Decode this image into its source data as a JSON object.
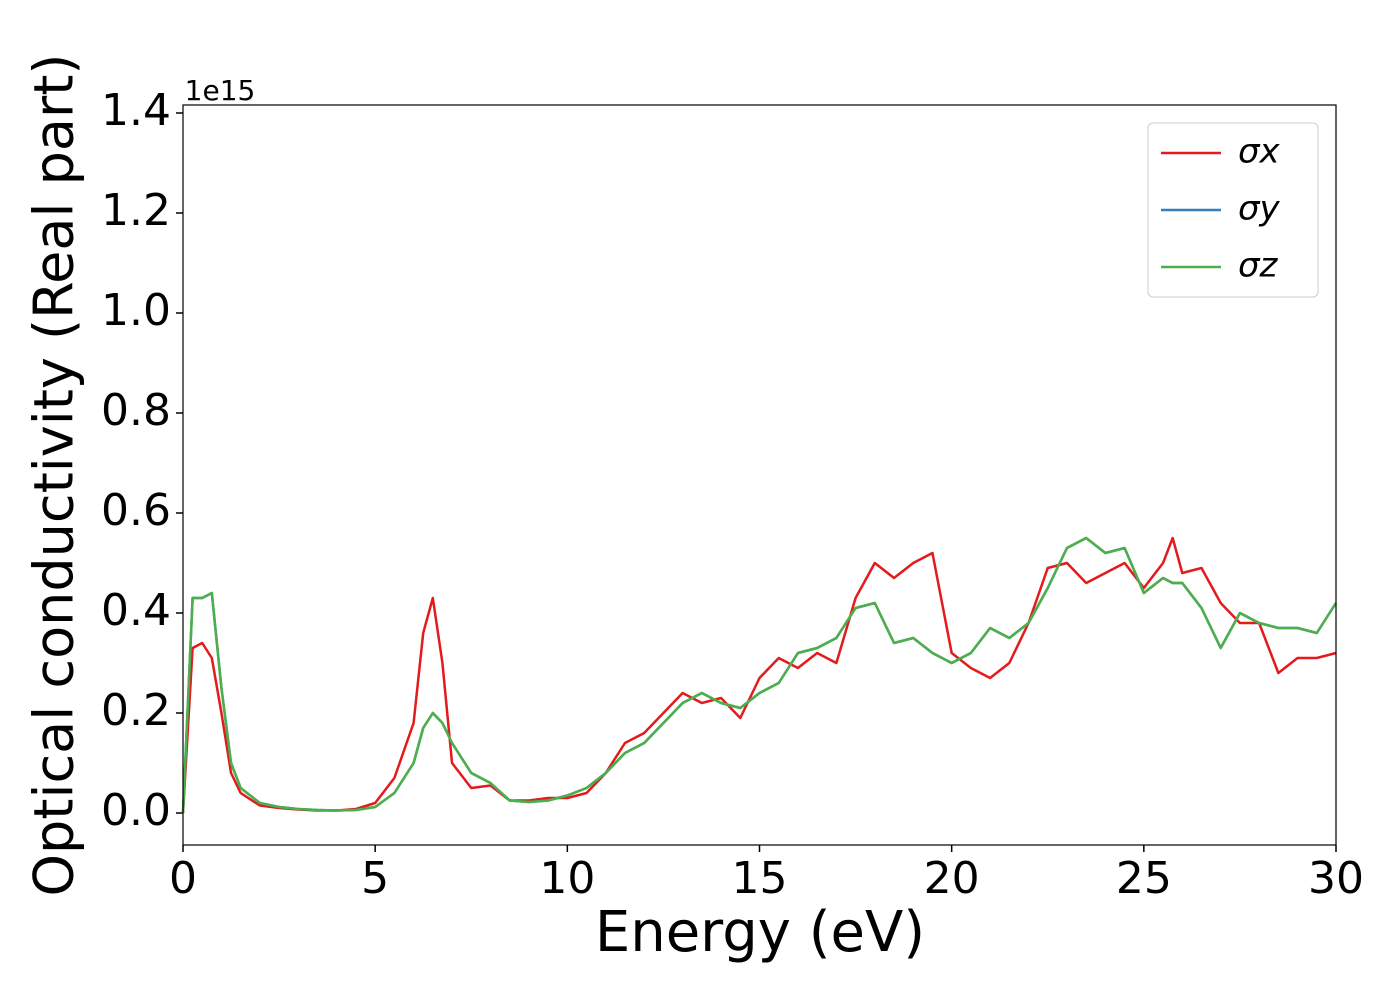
{
  "chart_data": {
    "type": "line",
    "xlabel": "Energy (eV)",
    "ylabel": "Optical conductivity (Real part)",
    "offset_text": "1e15",
    "x": [
      0,
      0.25,
      0.5,
      0.75,
      1,
      1.25,
      1.5,
      2,
      2.5,
      3,
      3.5,
      4,
      4.5,
      5,
      5.5,
      6,
      6.25,
      6.5,
      6.75,
      7,
      7.5,
      8,
      8.5,
      9,
      9.5,
      10,
      10.5,
      11,
      11.5,
      12,
      12.5,
      13,
      13.5,
      14,
      14.5,
      15,
      15.5,
      16,
      16.5,
      17,
      17.5,
      18,
      18.5,
      19,
      19.5,
      20,
      20.5,
      21,
      21.5,
      22,
      22.5,
      23,
      23.5,
      24,
      24.5,
      25,
      25.5,
      25.75,
      26,
      26.5,
      27,
      27.5,
      28,
      28.5,
      29,
      29.5,
      30
    ],
    "series": [
      {
        "name": "σx",
        "color": "#e41a1c",
        "values": [
          0,
          0.33,
          0.34,
          0.31,
          0.2,
          0.08,
          0.04,
          0.015,
          0.01,
          0.007,
          0.005,
          0.005,
          0.008,
          0.02,
          0.07,
          0.18,
          0.36,
          0.43,
          0.3,
          0.1,
          0.05,
          0.055,
          0.025,
          0.025,
          0.03,
          0.03,
          0.04,
          0.08,
          0.14,
          0.16,
          0.2,
          0.24,
          0.22,
          0.23,
          0.19,
          0.27,
          0.31,
          0.29,
          0.32,
          0.3,
          0.43,
          0.5,
          0.47,
          0.5,
          0.52,
          0.32,
          0.29,
          0.27,
          0.3,
          0.38,
          0.49,
          0.5,
          0.46,
          0.48,
          0.5,
          0.45,
          0.5,
          0.55,
          0.48,
          0.49,
          0.42,
          0.38,
          0.38,
          0.28,
          0.31,
          0.31,
          0.32
        ]
      },
      {
        "name": "σy",
        "color": "#377eb8",
        "values": [
          0,
          0.43,
          0.43,
          0.44,
          0.25,
          0.1,
          0.05,
          0.02,
          0.012,
          0.008,
          0.006,
          0.005,
          0.006,
          0.012,
          0.04,
          0.1,
          0.17,
          0.2,
          0.18,
          0.14,
          0.08,
          0.06,
          0.025,
          0.022,
          0.025,
          0.035,
          0.05,
          0.08,
          0.12,
          0.14,
          0.18,
          0.22,
          0.24,
          0.22,
          0.21,
          0.24,
          0.26,
          0.32,
          0.33,
          0.35,
          0.41,
          0.42,
          0.34,
          0.35,
          0.32,
          0.3,
          0.32,
          0.37,
          0.35,
          0.38,
          0.45,
          0.53,
          0.55,
          0.52,
          0.53,
          0.44,
          0.47,
          0.46,
          0.46,
          0.41,
          0.33,
          0.4,
          0.38,
          0.37,
          0.37,
          0.36,
          0.42
        ]
      },
      {
        "name": "σz",
        "color": "#4daf4a",
        "values": [
          0,
          0.43,
          0.43,
          0.44,
          0.25,
          0.1,
          0.05,
          0.02,
          0.012,
          0.008,
          0.006,
          0.005,
          0.006,
          0.012,
          0.04,
          0.1,
          0.17,
          0.2,
          0.18,
          0.14,
          0.08,
          0.06,
          0.025,
          0.022,
          0.025,
          0.035,
          0.05,
          0.08,
          0.12,
          0.14,
          0.18,
          0.22,
          0.24,
          0.22,
          0.21,
          0.24,
          0.26,
          0.32,
          0.33,
          0.35,
          0.41,
          0.42,
          0.34,
          0.35,
          0.32,
          0.3,
          0.32,
          0.37,
          0.35,
          0.38,
          0.45,
          0.53,
          0.55,
          0.52,
          0.53,
          0.44,
          0.47,
          0.46,
          0.46,
          0.41,
          0.33,
          0.4,
          0.38,
          0.37,
          0.37,
          0.36,
          0.42
        ]
      }
    ],
    "xlim": [
      0,
      30
    ],
    "xticks": [
      0,
      5,
      10,
      15,
      20,
      25,
      30
    ],
    "ylim": [
      -0.064,
      1.416
    ],
    "yticks": [
      {
        "value": 0,
        "label": "0.0"
      },
      0.2,
      0.4,
      0.6,
      0.8,
      {
        "value": 1,
        "label": "1.0"
      },
      1.2,
      1.4
    ],
    "grid": false,
    "legend": "upper right"
  }
}
